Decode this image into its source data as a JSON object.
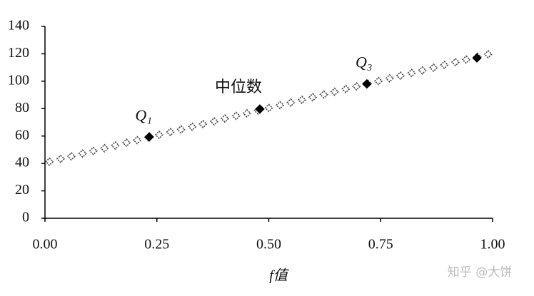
{
  "chart_data": {
    "type": "scatter",
    "xlabel": "f值",
    "xlim": [
      0,
      1
    ],
    "ylim": [
      0,
      140
    ],
    "xticks": [
      {
        "value": 0,
        "label": "0.00"
      },
      {
        "value": 0.25,
        "label": "0.25"
      },
      {
        "value": 0.5,
        "label": "0.50"
      },
      {
        "value": 0.75,
        "label": "0.75"
      },
      {
        "value": 1,
        "label": "1.00"
      }
    ],
    "yticks": [
      0,
      20,
      40,
      60,
      80,
      100,
      120,
      140
    ],
    "series": [
      {
        "color": "#444444",
        "filled": false,
        "x": [
          0.01,
          0.035,
          0.059,
          0.084,
          0.108,
          0.133,
          0.157,
          0.182,
          0.206,
          0.231,
          0.255,
          0.28,
          0.304,
          0.329,
          0.353,
          0.378,
          0.402,
          0.427,
          0.451,
          0.476,
          0.5,
          0.525,
          0.549,
          0.574,
          0.598,
          0.623,
          0.647,
          0.672,
          0.696,
          0.721,
          0.745,
          0.77,
          0.794,
          0.819,
          0.843,
          0.868,
          0.892,
          0.917,
          0.941,
          0.966,
          0.99
        ],
        "values": [
          41.3,
          43.3,
          45.2,
          47.2,
          49.1,
          51.1,
          53.1,
          55.1,
          57.0,
          59.0,
          60.9,
          62.9,
          64.8,
          66.8,
          68.7,
          70.7,
          72.7,
          74.7,
          76.6,
          78.6,
          80.5,
          82.5,
          84.4,
          86.4,
          88.3,
          90.3,
          92.3,
          94.3,
          96.2,
          98.2,
          100.1,
          102.1,
          104.0,
          106.0,
          107.9,
          109.9,
          111.9,
          113.9,
          115.8,
          117.8,
          119.7
        ]
      },
      {
        "color": "#000000",
        "filled": true,
        "x": [
          0.233,
          0.48,
          0.719,
          0.965
        ],
        "values": [
          59.4,
          79.7,
          98,
          117
        ]
      }
    ],
    "annotations": [
      "Q₁",
      "中位数",
      "Q₃"
    ],
    "watermark": "知乎 @大饼"
  }
}
